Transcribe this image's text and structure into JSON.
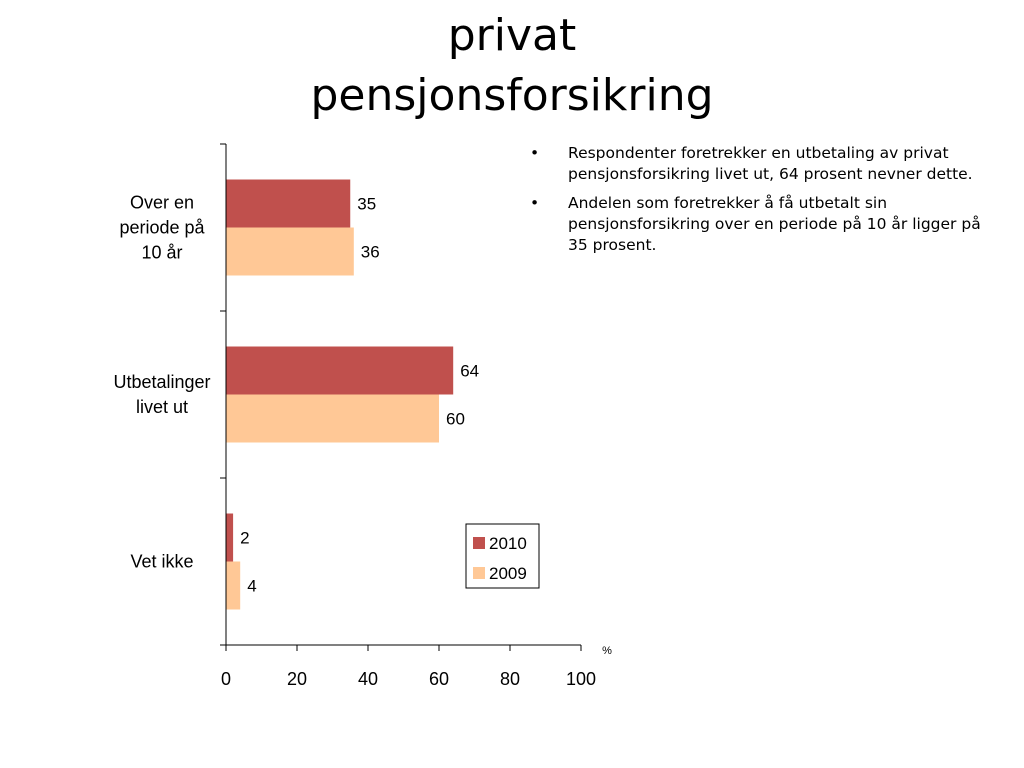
{
  "slide": {
    "title_line1": "privat",
    "title_line2": "pensjonsforsikring"
  },
  "bullets": [
    "Respondenter foretrekker en utbetaling av privat pensjonsforsikring livet ut, 64 prosent nevner dette.",
    "Andelen som foretrekker å få utbetalt sin pensjonsforsikring over en periode på 10 år ligger på 35 prosent."
  ],
  "chart_data": {
    "type": "bar",
    "orientation": "horizontal",
    "categories": [
      [
        "Over en",
        "periode på",
        "10 år"
      ],
      [
        "Utbetalinger",
        "livet ut"
      ],
      [
        "Vet ikke"
      ]
    ],
    "series": [
      {
        "name": "2010",
        "values": [
          35,
          64,
          2
        ],
        "color": "#c0504d"
      },
      {
        "name": "2009",
        "values": [
          36,
          60,
          4
        ],
        "color": "#ffc896"
      }
    ],
    "xlim": [
      0,
      100
    ],
    "xticks": [
      0,
      20,
      40,
      60,
      80,
      100
    ],
    "unit_label": "%",
    "grid": false,
    "legend_position": "bottom-right"
  }
}
